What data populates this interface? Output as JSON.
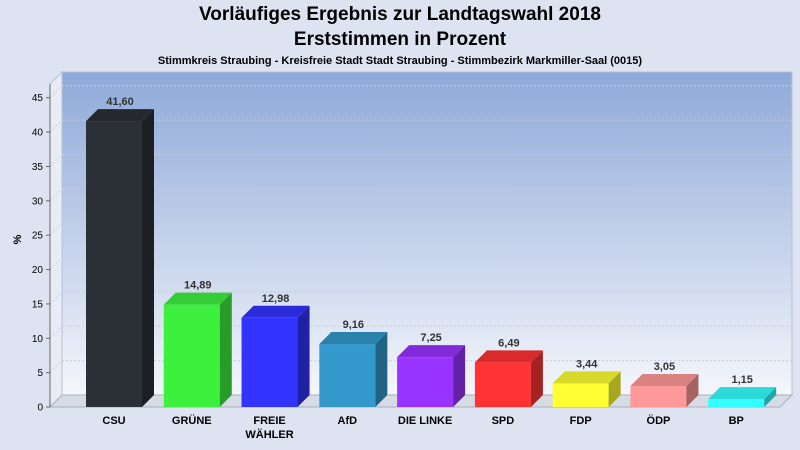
{
  "chart_data": {
    "type": "bar",
    "title": "Vorläufiges Ergebnis zur Landtagswahl 2018",
    "subtitle_line": "Erststimmen in Prozent",
    "subtitle": "Stimmkreis Straubing - Kreisfreie Stadt Stadt Straubing - Stimmbezirk Markmiller-Saal (0015)",
    "ylabel": "%",
    "xlabel": "",
    "ylim": [
      0,
      47
    ],
    "yticks": [
      0,
      5,
      10,
      15,
      20,
      25,
      30,
      35,
      40,
      45
    ],
    "grid": true,
    "categories": [
      [
        "CSU"
      ],
      [
        "GRÜNE"
      ],
      [
        "FREIE",
        "WÄHLER"
      ],
      [
        "AfD"
      ],
      [
        "DIE LINKE"
      ],
      [
        "SPD"
      ],
      [
        "FDP"
      ],
      [
        "ÖDP"
      ],
      [
        "BP"
      ]
    ],
    "values": [
      41.6,
      14.89,
      12.98,
      9.16,
      7.25,
      6.49,
      3.44,
      3.05,
      1.15
    ],
    "value_labels": [
      "41,60",
      "14,89",
      "12,98",
      "9,16",
      "7,25",
      "6,49",
      "3,44",
      "3,05",
      "1,15"
    ],
    "colors": [
      "#2b2f36",
      "#3ef03e",
      "#3333ff",
      "#3399cc",
      "#9933ff",
      "#ff3333",
      "#ffff33",
      "#ff9999",
      "#33ffff"
    ]
  }
}
